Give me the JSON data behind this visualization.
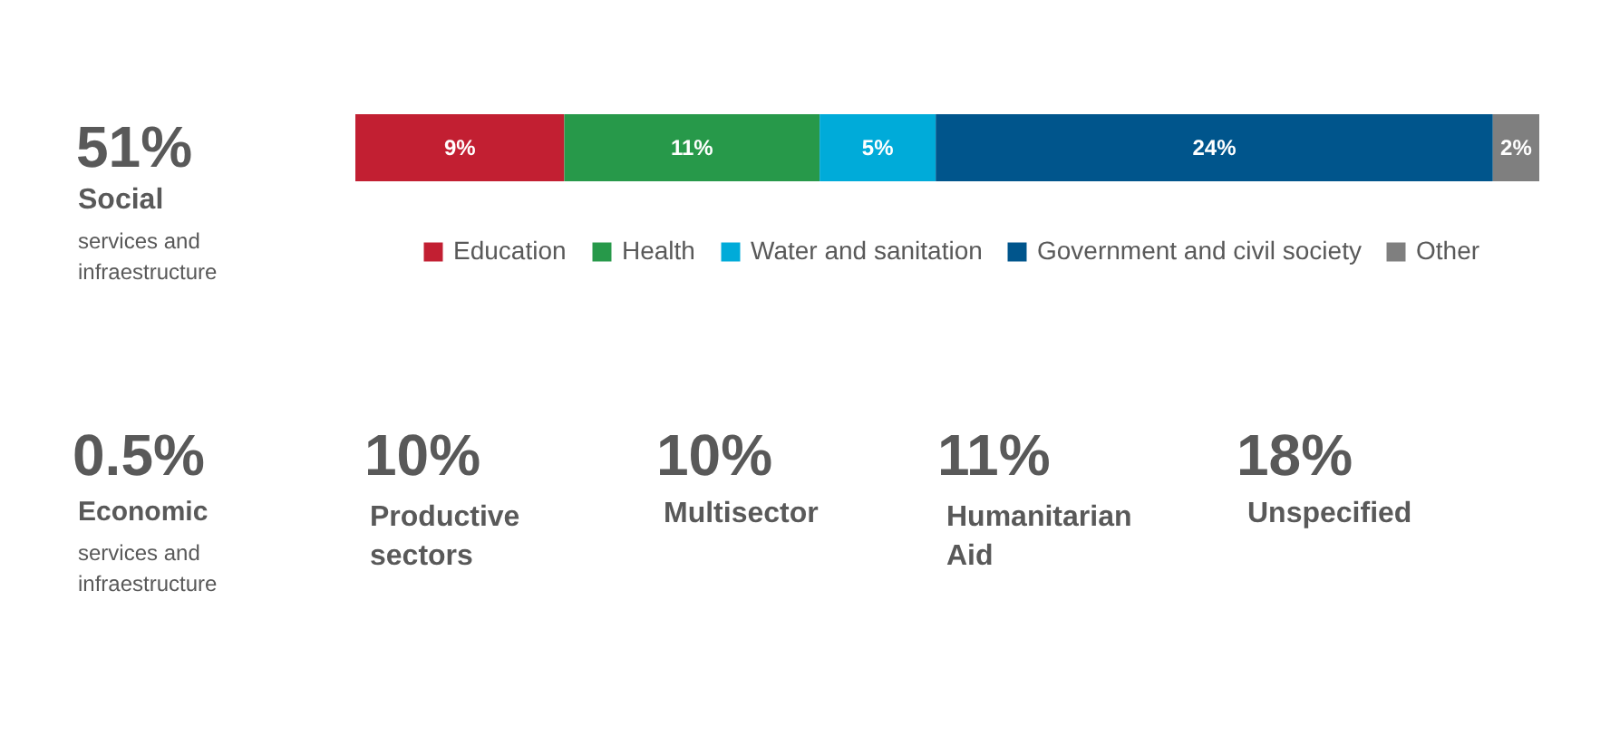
{
  "chart_data": {
    "type": "bar",
    "orientation": "horizontal",
    "stacked": true,
    "categories": [
      null
    ],
    "series": [
      {
        "name": "Education",
        "color": "#c21f32",
        "values": [
          9
        ],
        "value_labels": [
          "9%"
        ]
      },
      {
        "name": "Health",
        "color": "#27994a",
        "values": [
          11
        ],
        "value_labels": [
          "11%"
        ]
      },
      {
        "name": "Water and sanitation",
        "color": "#00abd9",
        "values": [
          5
        ],
        "value_labels": [
          "5%"
        ]
      },
      {
        "name": "Government and civil society",
        "color": "#00558c",
        "values": [
          24
        ],
        "value_labels": [
          "24%"
        ]
      },
      {
        "name": "Other",
        "color": "#7f7f7f",
        "values": [
          2
        ],
        "value_labels": [
          "2%"
        ]
      }
    ],
    "legend": "bottom",
    "annotations": [
      "51%",
      "Social",
      "services and infraestructure",
      "0.5%",
      "Economic",
      "services and infraestructure",
      "10%",
      "Productive sectors",
      "10%",
      "Multisector",
      "11%",
      "Humanitarian Aid",
      "18%",
      "Unspecified"
    ]
  }
}
